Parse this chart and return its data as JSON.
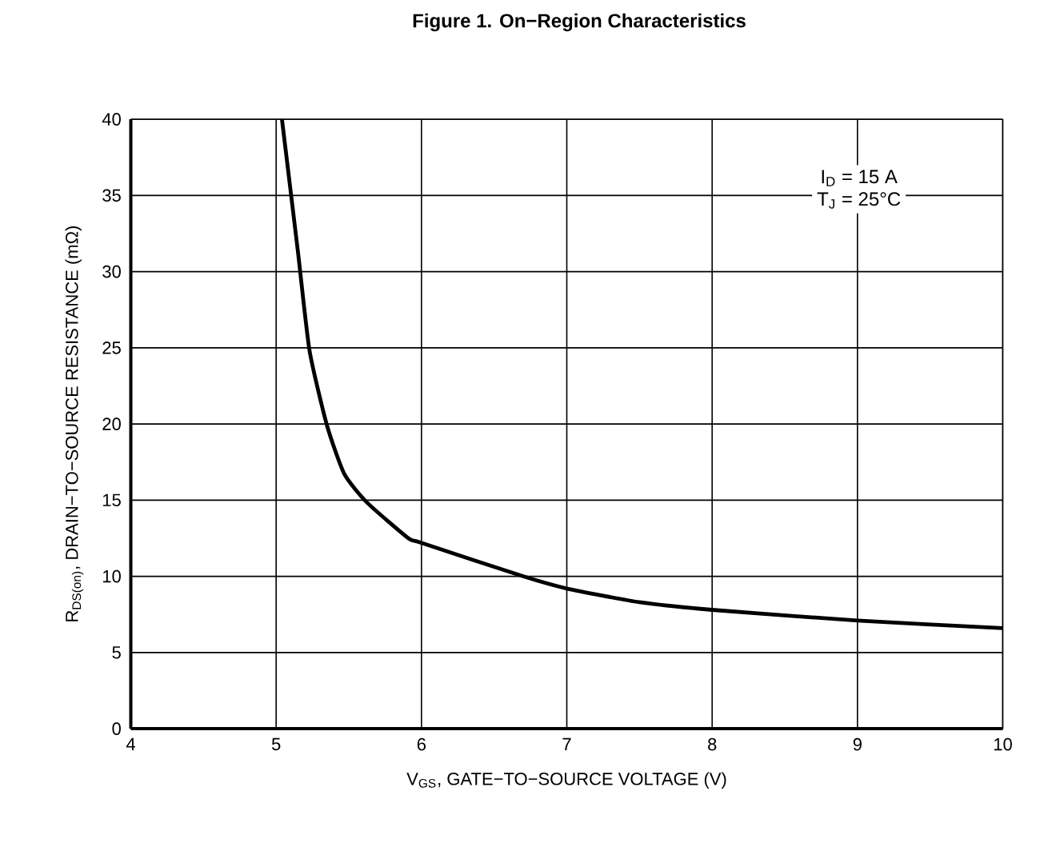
{
  "chart_data": {
    "type": "line",
    "title": "Figure 1. On−Region Characteristics",
    "xlabel": "V$_{GS}$, GATE−TO−SOURCE VOLTAGE (V)",
    "ylabel": "R$_{DS(on)}$, DRAIN−TO−SOURCE RESISTANCE (mΩ)",
    "annotations": [
      "I$_{D}$ = 15 A",
      "T$_{J}$ = 25°C"
    ],
    "x": [
      5.04,
      5.15,
      5.23,
      5.35,
      5.47,
      5.63,
      5.91,
      6.0,
      6.7,
      7.0,
      7.5,
      8.0,
      9.0,
      10.0
    ],
    "series": [
      {
        "color": "#000000",
        "values": [
          40,
          31.3,
          24.8,
          19.9,
          16.7,
          14.8,
          12.5,
          12.2,
          10.0,
          9.2,
          8.3,
          7.8,
          7.1,
          6.6
        ]
      }
    ],
    "xlim": [
      4,
      10
    ],
    "ylim": [
      0,
      40
    ],
    "xticks": [
      4,
      5,
      6,
      7,
      8,
      9,
      10
    ],
    "yticks": [
      0,
      5,
      10,
      15,
      20,
      25,
      30,
      35,
      40
    ],
    "grid": true,
    "marker": "none",
    "line_style": "solid"
  }
}
